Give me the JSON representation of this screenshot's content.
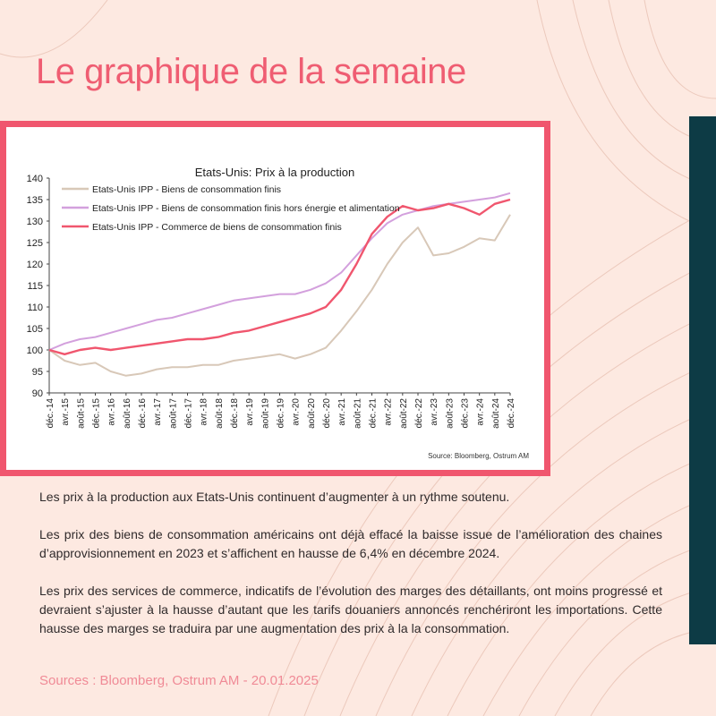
{
  "page": {
    "headline": "Le graphique de la semaine",
    "paragraphs": [
      "Les prix à la production aux Etats-Unis continuent d’augmenter à un rythme soutenu.",
      "Les prix des biens de consommation américains ont déjà effacé la baisse issue de l’amélioration des chaines d’approvisionnement en 2023 et s’affichent en hausse de 6,4% en décembre 2024.",
      "Les prix des services de commerce, indicatifs de l’évolution des marges des détaillants, ont moins progressé et devraient s’ajuster à la hausse d’autant que les tarifs douaniers annoncés renchériront les importations. Cette hausse des marges se traduira par une augmentation des prix à la la consommation."
    ],
    "sources": "Sources : Bloomberg, Ostrum AM - 20.01.2025",
    "colors": {
      "background": "#fde9e1",
      "accent": "#f0566e",
      "side_bar": "#0d3b45"
    }
  },
  "chart_data": {
    "type": "line",
    "title": "Etats-Unis: Prix à la production",
    "source": "Source: Bloomberg, Ostrum AM",
    "x_tick_labels": [
      "déc.-14",
      "avr.-15",
      "août-15",
      "déc.-15",
      "avr.-16",
      "août-16",
      "déc.-16",
      "avr.-17",
      "août-17",
      "déc.-17",
      "avr.-18",
      "août-18",
      "déc.-18",
      "avr.-19",
      "août-19",
      "déc.-19",
      "avr.-20",
      "août-20",
      "déc.-20",
      "avr.-21",
      "août-21",
      "déc.-21",
      "avr.-22",
      "août-22",
      "déc.-22",
      "avr.-23",
      "août-23",
      "déc.-23",
      "avr.-24",
      "août-24",
      "déc.-24"
    ],
    "ylim": [
      90,
      140
    ],
    "y_ticks": [
      90,
      95,
      100,
      105,
      110,
      115,
      120,
      125,
      130,
      135,
      140
    ],
    "legend_position": "top-left",
    "grid": false,
    "series": [
      {
        "name": "Etats-Unis IPP - Biens de consommation finis",
        "color": "#d8c8b8",
        "values": [
          100,
          97.5,
          96.5,
          97,
          95,
          94,
          94.5,
          95.5,
          96,
          96,
          96.5,
          96.5,
          97.5,
          98,
          98.5,
          99,
          98,
          99,
          100.5,
          104.5,
          109,
          114,
          120,
          125,
          128.5,
          122,
          122.5,
          124,
          126,
          125.5,
          131.5
        ]
      },
      {
        "name": "Etats-Unis IPP - Biens de consommation finis hors énergie et alimentation",
        "color": "#d3a0dd",
        "values": [
          100,
          101.5,
          102.5,
          103,
          104,
          105,
          106,
          107,
          107.5,
          108.5,
          109.5,
          110.5,
          111.5,
          112,
          112.5,
          113,
          113,
          114,
          115.5,
          118,
          122,
          126,
          129.5,
          131.5,
          132.5,
          133.5,
          134,
          134.5,
          135,
          135.5,
          136.5
        ]
      },
      {
        "name": "Etats-Unis IPP - Commerce de biens de consommation finis",
        "color": "#f0566e",
        "values": [
          100,
          99,
          100,
          100.5,
          100,
          100.5,
          101,
          101.5,
          102,
          102.5,
          102.5,
          103,
          104,
          104.5,
          105.5,
          106.5,
          107.5,
          108.5,
          110,
          114,
          120,
          127,
          131,
          133.5,
          132.5,
          133,
          134,
          133,
          131.5,
          134,
          135
        ]
      }
    ]
  }
}
